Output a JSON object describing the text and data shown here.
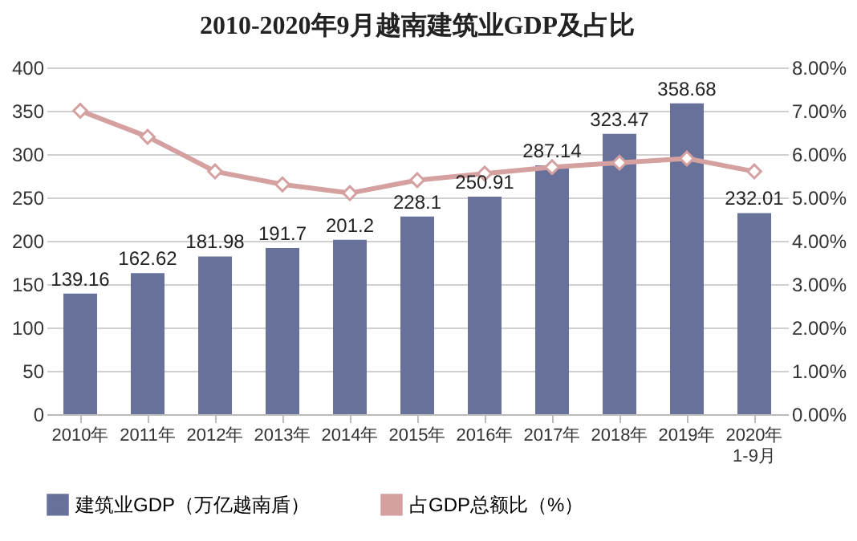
{
  "chart_data": {
    "type": "bar",
    "title": "2010-2020年9月越南建筑业GDP及占比",
    "categories": [
      "2010年",
      "2011年",
      "2012年",
      "2013年",
      "2014年",
      "2015年",
      "2016年",
      "2017年",
      "2018年",
      "2019年",
      "2020年\n1-9月"
    ],
    "series": [
      {
        "name": "建筑业GDP（万亿越南盾）",
        "color": "#67719a",
        "values": [
          139.16,
          162.62,
          181.98,
          191.7,
          201.2,
          228.1,
          250.91,
          287.14,
          323.47,
          358.68,
          232.01
        ],
        "value_labels": [
          "139.16",
          "162.62",
          "181.98",
          "191.7",
          "201.2",
          "228.1",
          "250.91",
          "287.14",
          "323.47",
          "358.68",
          "232.01"
        ]
      },
      {
        "name": "占GDP总额比（%）",
        "type": "line",
        "axis": "y2",
        "color": "#d4a0a0",
        "marker": "diamond",
        "values": [
          7.0,
          6.4,
          5.6,
          5.3,
          5.1,
          5.4,
          5.55,
          5.7,
          5.8,
          5.9,
          5.6
        ]
      }
    ],
    "ylim": [
      0,
      400
    ],
    "yticks": [
      0,
      50,
      100,
      150,
      200,
      250,
      300,
      350,
      400
    ],
    "y2lim": [
      0,
      8
    ],
    "y2ticks": [
      {
        "value": 0,
        "label": "0.00%"
      },
      {
        "value": 1,
        "label": "1.00%"
      },
      {
        "value": 2,
        "label": "2.00%"
      },
      {
        "value": 3,
        "label": "3.00%"
      },
      {
        "value": 4,
        "label": "4.00%"
      },
      {
        "value": 5,
        "label": "5.00%"
      },
      {
        "value": 6,
        "label": "6.00%"
      },
      {
        "value": 7,
        "label": "7.00%"
      },
      {
        "value": 8,
        "label": "8.00%"
      }
    ],
    "grid": "y",
    "legend": "bottom"
  }
}
